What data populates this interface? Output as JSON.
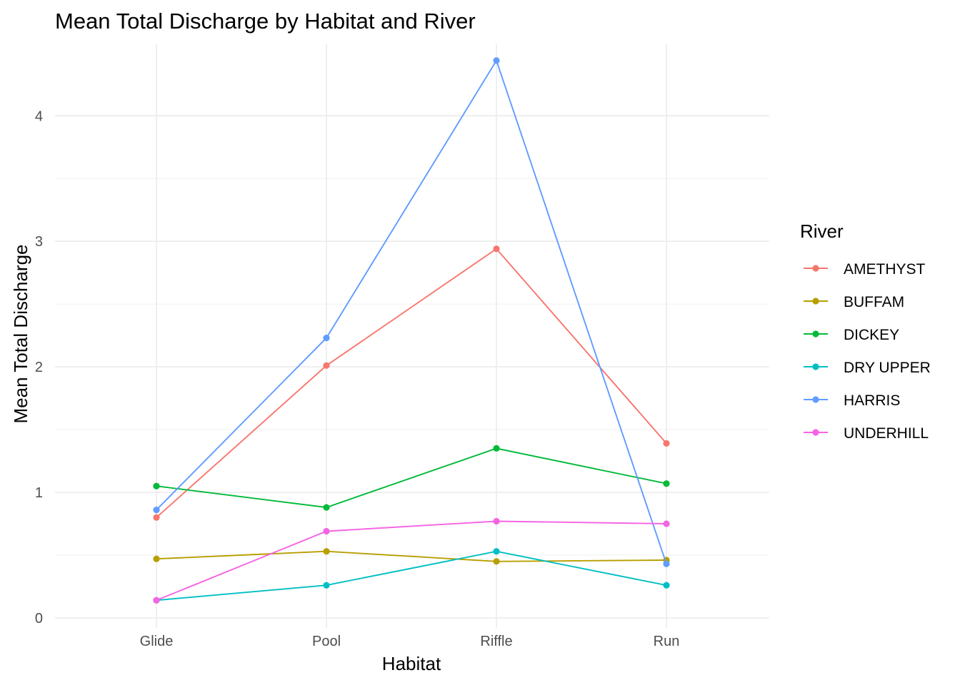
{
  "chart_data": {
    "type": "line",
    "title": "Mean Total Discharge by Habitat and River",
    "xlabel": "Habitat",
    "ylabel": "Mean Total Discharge",
    "categories": [
      "Glide",
      "Pool",
      "Riffle",
      "Run"
    ],
    "yticks": [
      "0",
      "1",
      "2",
      "3",
      "4"
    ],
    "ylim": [
      -0.08,
      4.57
    ],
    "grid": true,
    "legend": {
      "title": "River",
      "position": "right"
    },
    "series": [
      {
        "name": "AMETHYST",
        "color": "#F8766D",
        "values": [
          0.8,
          2.01,
          2.94,
          1.39
        ]
      },
      {
        "name": "BUFFAM",
        "color": "#B79F00",
        "values": [
          0.47,
          0.53,
          0.45,
          0.46
        ]
      },
      {
        "name": "DICKEY",
        "color": "#00BA38",
        "values": [
          1.05,
          0.88,
          1.35,
          1.07
        ]
      },
      {
        "name": "DRY UPPER",
        "color": "#00BFC4",
        "values": [
          0.14,
          0.26,
          0.53,
          0.26
        ]
      },
      {
        "name": "HARRIS",
        "color": "#619CFF",
        "values": [
          0.86,
          2.23,
          4.44,
          0.43
        ]
      },
      {
        "name": "UNDERHILL",
        "color": "#F564E3",
        "values": [
          0.14,
          0.69,
          0.77,
          0.75
        ]
      }
    ]
  }
}
